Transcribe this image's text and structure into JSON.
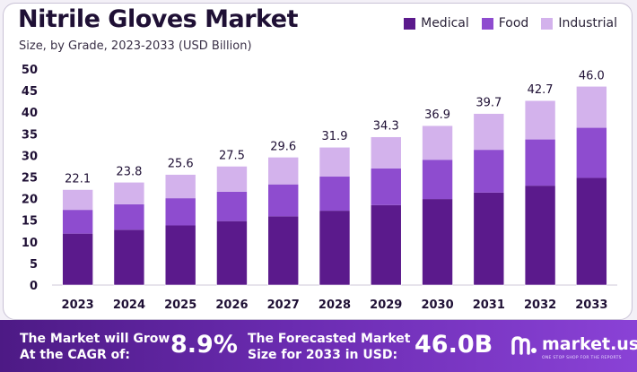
{
  "title": "Nitrile Gloves Market",
  "subtitle": "Size, by Grade, 2023-2033 (USD Billion)",
  "colors": {
    "medical": "#5b1a8c",
    "food": "#8e4ccf",
    "industrial": "#d3b2ec"
  },
  "chart_data": {
    "type": "bar",
    "stacked": true,
    "categories": [
      "2023",
      "2024",
      "2025",
      "2026",
      "2027",
      "2028",
      "2029",
      "2030",
      "2031",
      "2032",
      "2033"
    ],
    "series": [
      {
        "name": "Medical",
        "values": [
          11.9,
          12.8,
          13.8,
          14.8,
          15.9,
          17.2,
          18.5,
          19.9,
          21.4,
          23.0,
          24.8
        ]
      },
      {
        "name": "Food",
        "values": [
          5.5,
          5.9,
          6.3,
          6.8,
          7.4,
          7.9,
          8.5,
          9.1,
          9.9,
          10.7,
          11.6
        ]
      },
      {
        "name": "Industrial",
        "values": [
          4.7,
          5.1,
          5.5,
          5.9,
          6.3,
          6.8,
          7.3,
          7.9,
          8.4,
          9.0,
          9.6
        ]
      }
    ],
    "totals": [
      "22.1",
      "23.8",
      "25.6",
      "27.5",
      "29.6",
      "31.9",
      "34.3",
      "36.9",
      "39.7",
      "42.7",
      "46.0"
    ],
    "yticks": [
      "0",
      "5",
      "10",
      "15",
      "20",
      "25",
      "30",
      "35",
      "40",
      "45",
      "50"
    ],
    "ylim": [
      0,
      50
    ],
    "legend_position": "top-right"
  },
  "footer": {
    "cagr_label_line1": "The Market will Grow",
    "cagr_label_line2": "At the CAGR of:",
    "cagr_value": "8.9%",
    "forecast_label_line1": "The Forecasted Market",
    "forecast_label_line2": "Size for 2033 in USD:",
    "forecast_value": "46.0B",
    "brand": "market.us",
    "brand_tagline": "ONE STOP SHOP FOR THE REPORTS"
  }
}
